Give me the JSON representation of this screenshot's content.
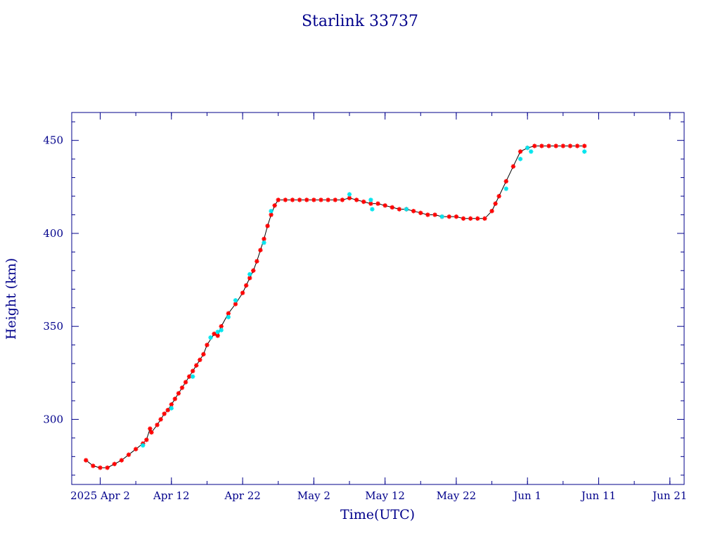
{
  "chart_data": {
    "type": "scatter",
    "title": "Starlink 33737",
    "xlabel": "Time(UTC)",
    "ylabel": "Height (km)",
    "xlim": [
      "2025-03-29",
      "2025-06-23"
    ],
    "ylim": [
      265,
      465
    ],
    "grid": false,
    "legend": "none",
    "x_ticks": [
      {
        "date": "2025-04-02",
        "label": "2025 Apr 2"
      },
      {
        "date": "2025-04-12",
        "label": "Apr 12"
      },
      {
        "date": "2025-04-22",
        "label": "Apr 22"
      },
      {
        "date": "2025-05-02",
        "label": "May  2"
      },
      {
        "date": "2025-05-12",
        "label": "May 12"
      },
      {
        "date": "2025-05-22",
        "label": "May 22"
      },
      {
        "date": "2025-06-01",
        "label": "Jun  1"
      },
      {
        "date": "2025-06-11",
        "label": "Jun 11"
      },
      {
        "date": "2025-06-21",
        "label": "Jun 21"
      }
    ],
    "y_ticks": [
      300,
      350,
      400,
      450
    ],
    "colors": {
      "axes": "#00008b",
      "line": "#000000",
      "primary": "#ff0000",
      "secondary": "#00e5ee"
    },
    "series": [
      {
        "color": "red",
        "points": [
          [
            "2025-03-31",
            278
          ],
          [
            "2025-04-01",
            275
          ],
          [
            "2025-04-02",
            274
          ],
          [
            "2025-04-03",
            274
          ],
          [
            "2025-04-04",
            276
          ],
          [
            "2025-04-05",
            278
          ],
          [
            "2025-04-06",
            281
          ],
          [
            "2025-04-07",
            284
          ],
          [
            "2025-04-08",
            287
          ],
          [
            "2025-04-08.5",
            289
          ],
          [
            "2025-04-09",
            295
          ],
          [
            "2025-04-09.2",
            293
          ],
          [
            "2025-04-10",
            297
          ],
          [
            "2025-04-10.5",
            300
          ],
          [
            "2025-04-11",
            303
          ],
          [
            "2025-04-11.5",
            305
          ],
          [
            "2025-04-12",
            308
          ],
          [
            "2025-04-12.5",
            311
          ],
          [
            "2025-04-13",
            314
          ],
          [
            "2025-04-13.5",
            317
          ],
          [
            "2025-04-14",
            320
          ],
          [
            "2025-04-14.5",
            323
          ],
          [
            "2025-04-15",
            326
          ],
          [
            "2025-04-15.5",
            329
          ],
          [
            "2025-04-16",
            332
          ],
          [
            "2025-04-16.5",
            335
          ],
          [
            "2025-04-17",
            340
          ],
          [
            "2025-04-18",
            346
          ],
          [
            "2025-04-18.5",
            345
          ],
          [
            "2025-04-19",
            350
          ],
          [
            "2025-04-20",
            357
          ],
          [
            "2025-04-21",
            362
          ],
          [
            "2025-04-22",
            368
          ],
          [
            "2025-04-22.5",
            372
          ],
          [
            "2025-04-23",
            376
          ],
          [
            "2025-04-23.5",
            380
          ],
          [
            "2025-04-24",
            385
          ],
          [
            "2025-04-24.5",
            391
          ],
          [
            "2025-04-25",
            397
          ],
          [
            "2025-04-25.5",
            404
          ],
          [
            "2025-04-26",
            410
          ],
          [
            "2025-04-26.5",
            415
          ],
          [
            "2025-04-27",
            418
          ],
          [
            "2025-04-28",
            418
          ],
          [
            "2025-04-29",
            418
          ],
          [
            "2025-04-30",
            418
          ],
          [
            "2025-05-01",
            418
          ],
          [
            "2025-05-02",
            418
          ],
          [
            "2025-05-03",
            418
          ],
          [
            "2025-05-04",
            418
          ],
          [
            "2025-05-05",
            418
          ],
          [
            "2025-05-06",
            418
          ],
          [
            "2025-05-07",
            419
          ],
          [
            "2025-05-08",
            418
          ],
          [
            "2025-05-09",
            417
          ],
          [
            "2025-05-10",
            416
          ],
          [
            "2025-05-11",
            416
          ],
          [
            "2025-05-12",
            415
          ],
          [
            "2025-05-13",
            414
          ],
          [
            "2025-05-14",
            413
          ],
          [
            "2025-05-15",
            413
          ],
          [
            "2025-05-16",
            412
          ],
          [
            "2025-05-17",
            411
          ],
          [
            "2025-05-18",
            410
          ],
          [
            "2025-05-19",
            410
          ],
          [
            "2025-05-20",
            409
          ],
          [
            "2025-05-21",
            409
          ],
          [
            "2025-05-22",
            409
          ],
          [
            "2025-05-23",
            408
          ],
          [
            "2025-05-24",
            408
          ],
          [
            "2025-05-25",
            408
          ],
          [
            "2025-05-26",
            408
          ],
          [
            "2025-05-27",
            412
          ],
          [
            "2025-05-27.5",
            416
          ],
          [
            "2025-05-28",
            420
          ],
          [
            "2025-05-29",
            428
          ],
          [
            "2025-05-30",
            436
          ],
          [
            "2025-05-31",
            444
          ],
          [
            "2025-06-01",
            446
          ],
          [
            "2025-06-02",
            447
          ],
          [
            "2025-06-03",
            447
          ],
          [
            "2025-06-04",
            447
          ],
          [
            "2025-06-05",
            447
          ],
          [
            "2025-06-06",
            447
          ],
          [
            "2025-06-07",
            447
          ],
          [
            "2025-06-08",
            447
          ],
          [
            "2025-06-09",
            447
          ]
        ]
      },
      {
        "color": "cyan",
        "points": [
          [
            "2025-04-08",
            286
          ],
          [
            "2025-04-12",
            306
          ],
          [
            "2025-04-15",
            323
          ],
          [
            "2025-04-17.5",
            344
          ],
          [
            "2025-04-18.5",
            347
          ],
          [
            "2025-04-19",
            348
          ],
          [
            "2025-04-20",
            355
          ],
          [
            "2025-04-21",
            364
          ],
          [
            "2025-04-23",
            378
          ],
          [
            "2025-04-25",
            395
          ],
          [
            "2025-04-26",
            412
          ],
          [
            "2025-05-07",
            421
          ],
          [
            "2025-05-10",
            418
          ],
          [
            "2025-05-10.2",
            413
          ],
          [
            "2025-05-15",
            413
          ],
          [
            "2025-05-20",
            409
          ],
          [
            "2025-05-29",
            424
          ],
          [
            "2025-05-31",
            440
          ],
          [
            "2025-06-01",
            446
          ],
          [
            "2025-06-01.5",
            444
          ],
          [
            "2025-06-09",
            444
          ]
        ]
      }
    ]
  }
}
